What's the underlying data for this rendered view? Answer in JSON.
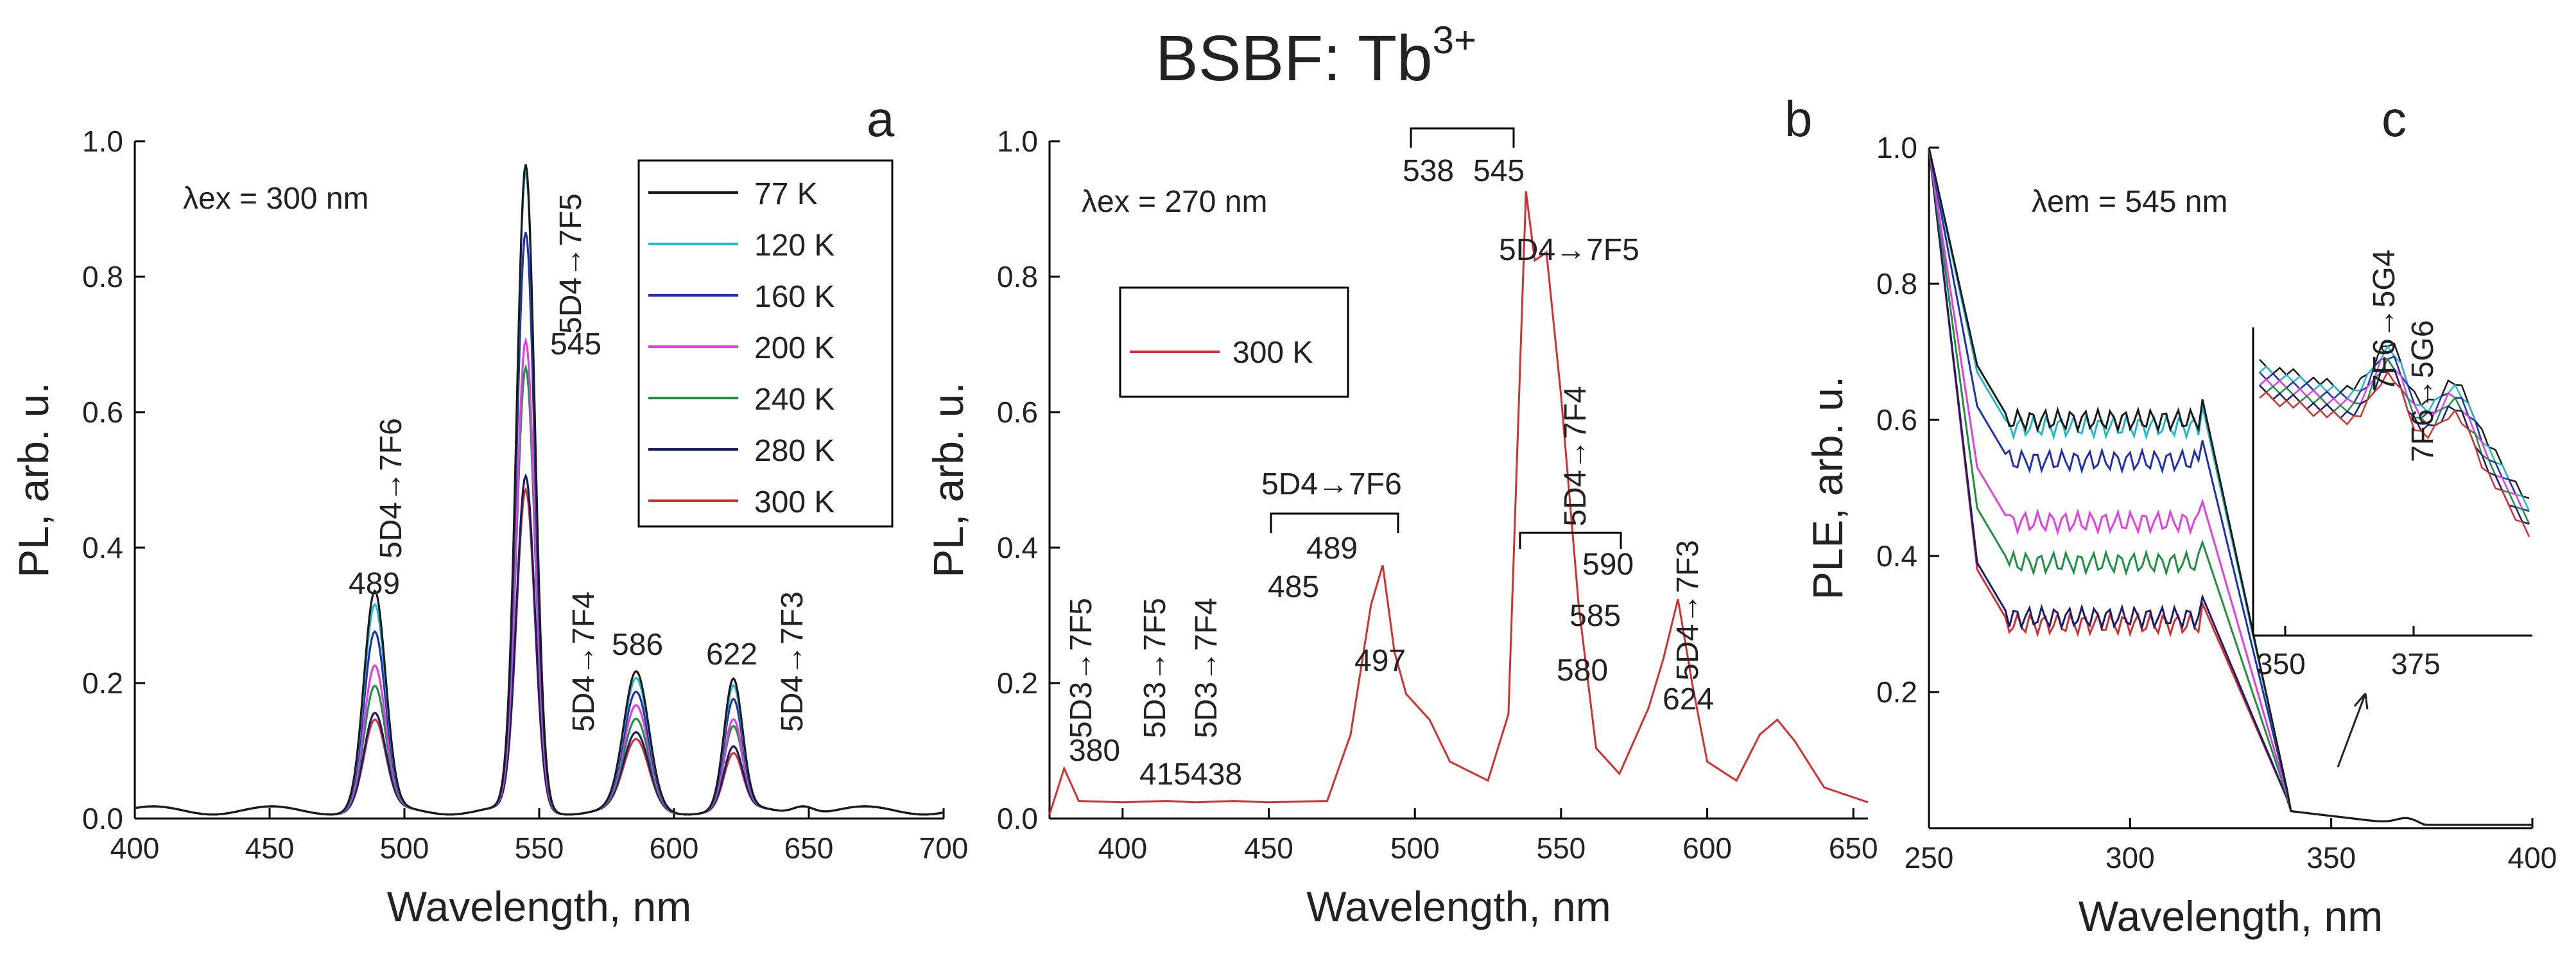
{
  "figure_title": "BSBF: Tb",
  "figure_title_sup": "3+",
  "chart_data": [
    {
      "panel": "a",
      "type": "line",
      "xlabel": "Wavelength, nm",
      "ylabel": "PL, arb. u.",
      "xlim": [
        400,
        700
      ],
      "ylim": [
        0,
        1.0
      ],
      "xticks": [
        400,
        450,
        500,
        550,
        600,
        650,
        700
      ],
      "yticks": [
        0.0,
        0.2,
        0.4,
        0.6,
        0.8,
        1.0
      ],
      "excitation": "λex = 300 nm",
      "legend": [
        "77 K",
        "120 K",
        "160 K",
        "200 K",
        "240 K",
        "280 K",
        "300 K"
      ],
      "series": [
        {
          "name": "77 K",
          "color": "#1a1a1a",
          "peaks": {
            "489": 0.32,
            "545": 0.95,
            "586": 0.2,
            "622": 0.19
          }
        },
        {
          "name": "120 K",
          "color": "#22b8c9",
          "peaks": {
            "489": 0.3,
            "545": 0.94,
            "586": 0.19,
            "622": 0.18
          }
        },
        {
          "name": "160 K",
          "color": "#2030b0",
          "peaks": {
            "489": 0.26,
            "545": 0.85,
            "586": 0.17,
            "622": 0.16
          }
        },
        {
          "name": "200 K",
          "color": "#e040e0",
          "peaks": {
            "489": 0.21,
            "545": 0.69,
            "586": 0.15,
            "622": 0.13
          }
        },
        {
          "name": "240 K",
          "color": "#1e9040",
          "peaks": {
            "489": 0.18,
            "545": 0.65,
            "586": 0.13,
            "622": 0.12
          }
        },
        {
          "name": "280 K",
          "color": "#1a1a6e",
          "peaks": {
            "489": 0.14,
            "545": 0.49,
            "586": 0.11,
            "622": 0.09
          }
        },
        {
          "name": "300 K",
          "color": "#d03030",
          "peaks": {
            "489": 0.13,
            "545": 0.47,
            "586": 0.1,
            "622": 0.08
          }
        }
      ],
      "peak_labels": [
        "489",
        "545",
        "586",
        "622"
      ],
      "transitions": [
        "5D4→7F6",
        "5D4→7F5",
        "5D4→7F4",
        "5D4→7F3"
      ],
      "panel_label": "a"
    },
    {
      "panel": "b",
      "type": "line",
      "xlabel": "Wavelength, nm",
      "ylabel": "PL, arb. u.",
      "xlim": [
        375,
        655
      ],
      "ylim": [
        0,
        1.0
      ],
      "xticks": [
        400,
        450,
        500,
        550,
        600,
        650
      ],
      "yticks": [
        0.0,
        0.2,
        0.4,
        0.6,
        0.8,
        1.0
      ],
      "excitation": "λex = 270 nm",
      "legend": [
        "300 K"
      ],
      "series": [
        {
          "name": "300 K",
          "color": "#d03030",
          "points": [
            [
              375,
              0.01
            ],
            [
              380,
              0.07
            ],
            [
              385,
              0.03
            ],
            [
              400,
              0.02
            ],
            [
              415,
              0.03
            ],
            [
              425,
              0.02
            ],
            [
              438,
              0.03
            ],
            [
              450,
              0.02
            ],
            [
              470,
              0.03
            ],
            [
              478,
              0.12
            ],
            [
              485,
              0.32
            ],
            [
              489,
              0.37
            ],
            [
              493,
              0.25
            ],
            [
              497,
              0.18
            ],
            [
              505,
              0.15
            ],
            [
              512,
              0.08
            ],
            [
              525,
              0.06
            ],
            [
              532,
              0.15
            ],
            [
              538,
              0.93
            ],
            [
              541,
              0.82
            ],
            [
              545,
              0.84
            ],
            [
              550,
              0.62
            ],
            [
              556,
              0.32
            ],
            [
              562,
              0.1
            ],
            [
              570,
              0.07
            ],
            [
              580,
              0.16
            ],
            [
              585,
              0.24
            ],
            [
              590,
              0.32
            ],
            [
              595,
              0.2
            ],
            [
              600,
              0.08
            ],
            [
              610,
              0.06
            ],
            [
              618,
              0.12
            ],
            [
              624,
              0.15
            ],
            [
              630,
              0.11
            ],
            [
              640,
              0.05
            ],
            [
              655,
              0.02
            ]
          ]
        }
      ],
      "peak_labels": [
        "380",
        "415",
        "438",
        "485",
        "489",
        "497",
        "538",
        "545",
        "580",
        "585",
        "590",
        "624"
      ],
      "transitions": [
        "5D3→7F5",
        "5D3→7F5",
        "5D3→7F4",
        "5D4→7F6",
        "5D4→7F5",
        "5D4→7F4",
        "5D4→7F3"
      ],
      "panel_label": "b"
    },
    {
      "panel": "c",
      "type": "line",
      "xlabel": "Wavelength, nm",
      "ylabel": "PLE, arb. u.",
      "xlim": [
        250,
        400
      ],
      "ylim": [
        0,
        1.0
      ],
      "xticks": [
        250,
        300,
        350,
        400
      ],
      "yticks": [
        0.2,
        0.4,
        0.6,
        0.8,
        1.0
      ],
      "emission": "λem = 545 nm",
      "series": [
        {
          "name": "77 K",
          "color": "#1a1a1a",
          "plateau": 0.6
        },
        {
          "name": "120 K",
          "color": "#22b8c9",
          "plateau": 0.59
        },
        {
          "name": "160 K",
          "color": "#2030b0",
          "plateau": 0.54
        },
        {
          "name": "200 K",
          "color": "#e040e0",
          "plateau": 0.45
        },
        {
          "name": "240 K",
          "color": "#1e9040",
          "plateau": 0.39
        },
        {
          "name": "280 K",
          "color": "#1a1a6e",
          "plateau": 0.31
        },
        {
          "name": "300 K",
          "color": "#d03030",
          "plateau": 0.3
        }
      ],
      "inset": {
        "xticks": [
          350,
          375
        ],
        "transitions": [
          "7F6→5G4",
          "7F6→5G6"
        ]
      },
      "panel_label": "c"
    }
  ]
}
